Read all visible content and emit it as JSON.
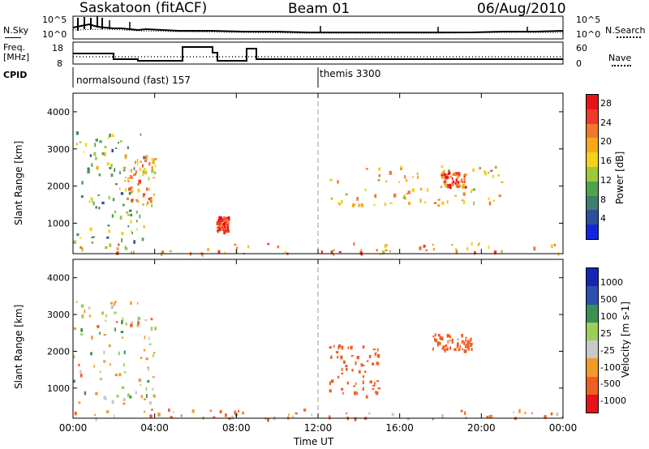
{
  "header": {
    "station": "Saskatoon (fitACF)",
    "beam": "Beam 01",
    "date": "06/Aug/2010"
  },
  "left_labels": {
    "nsky": "N.Sky",
    "nsky_ticks": [
      "10^5",
      "10^0"
    ],
    "freq": "Freq.",
    "freq_unit": "[MHz]",
    "freq_ticks": [
      "18",
      "8"
    ],
    "cpid": "CPID"
  },
  "right_labels": {
    "nsearch": "N.Search",
    "nsearch_ticks": [
      "10^5",
      "10^0"
    ],
    "nave": "Nave",
    "nave_ticks": [
      "60",
      "0"
    ]
  },
  "cpid_segments": [
    {
      "start_hour": 0,
      "label": "normalsound (fast) 157"
    },
    {
      "start_hour": 12,
      "label": "themis 3300"
    }
  ],
  "colors": {
    "power_scale": [
      "#1424dc",
      "#2f4f9c",
      "#3f7f6a",
      "#4fa34f",
      "#9cc93c",
      "#f2d21c",
      "#f6a91e",
      "#f4782a",
      "#ee3a26",
      "#e8121a"
    ],
    "velocity_scale": [
      "#e8121a",
      "#ef5f25",
      "#f39a2a",
      "#c8c8c8",
      "#9acf58",
      "#3c8f55",
      "#2c4fae",
      "#1426b4"
    ]
  },
  "chart_data": [
    {
      "type": "heatmap",
      "panel": "power",
      "title": "",
      "xlabel": "Time UT",
      "ylabel": "Slant Range [km]",
      "xlim_hours": [
        0,
        24
      ],
      "ylim_km": [
        180,
        4500
      ],
      "x_ticks": [
        "00:00",
        "04:00",
        "08:00",
        "12:00",
        "16:00",
        "20:00",
        "00:00"
      ],
      "y_ticks": [
        1000,
        2000,
        3000,
        4000
      ],
      "colorbar": {
        "label": "Power [dB]",
        "ticks": [
          4,
          8,
          12,
          16,
          20,
          24,
          28
        ],
        "range": [
          0,
          30
        ]
      },
      "echo_regions": [
        {
          "t_start": 0.0,
          "t_end": 3.5,
          "range_start": 200,
          "range_end": 3500,
          "typical_value": 12
        },
        {
          "t_start": 2.5,
          "t_end": 4.0,
          "range_start": 1500,
          "range_end": 2900,
          "typical_value": 20
        },
        {
          "t_start": 7.0,
          "t_end": 7.6,
          "range_start": 800,
          "range_end": 1200,
          "typical_value": 28
        },
        {
          "t_start": 12.5,
          "t_end": 21.0,
          "range_start": 1500,
          "range_end": 2600,
          "typical_value": 18
        },
        {
          "t_start": 18.0,
          "t_end": 19.2,
          "range_start": 2000,
          "range_end": 2400,
          "typical_value": 26
        },
        {
          "t_start": 0.0,
          "t_end": 24.0,
          "range_start": 180,
          "range_end": 500,
          "typical_value": 20
        }
      ]
    },
    {
      "type": "heatmap",
      "panel": "velocity",
      "title": "",
      "xlabel": "Time UT",
      "ylabel": "Slant Range [km]",
      "xlim_hours": [
        0,
        24
      ],
      "ylim_km": [
        180,
        4500
      ],
      "x_ticks": [
        "00:00",
        "04:00",
        "08:00",
        "12:00",
        "16:00",
        "20:00",
        "00:00"
      ],
      "y_ticks": [
        1000,
        2000,
        3000,
        4000
      ],
      "colorbar": {
        "label": "Velocity [m s-1]",
        "ticks": [
          1000,
          500,
          100,
          25,
          -25,
          -100,
          -500,
          -1000
        ]
      },
      "echo_regions": [
        {
          "t_start": 0.0,
          "t_end": 4.0,
          "range_start": 600,
          "range_end": 3400,
          "typical_value": 0
        },
        {
          "t_start": 12.5,
          "t_end": 15.0,
          "range_start": 800,
          "range_end": 2200,
          "typical_value": -300
        },
        {
          "t_start": 17.5,
          "t_end": 19.5,
          "range_start": 2000,
          "range_end": 2500,
          "typical_value": -300
        },
        {
          "t_start": 0.0,
          "t_end": 24.0,
          "range_start": 180,
          "range_end": 450,
          "typical_value": -100
        }
      ]
    }
  ]
}
